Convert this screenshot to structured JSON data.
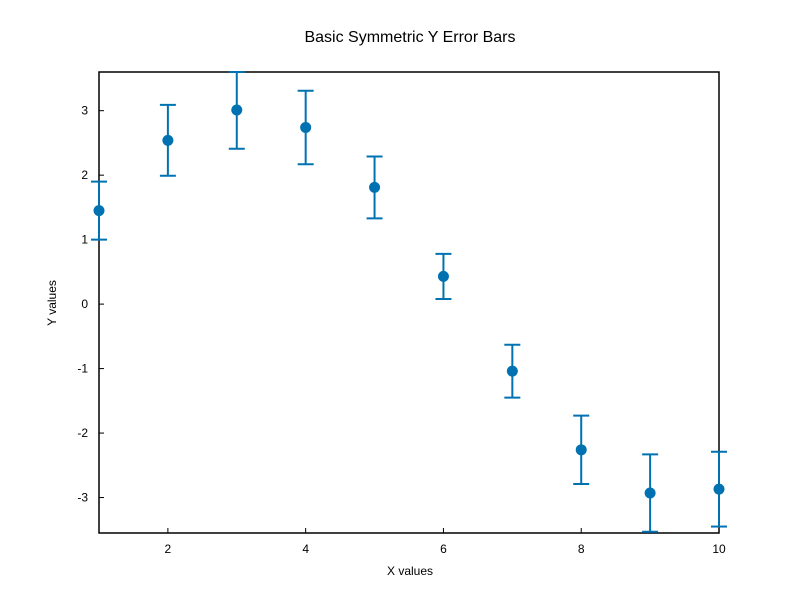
{
  "chart_data": {
    "type": "scatter",
    "title": "Basic Symmetric Y Error Bars",
    "xlabel": "X values",
    "ylabel": "Y values",
    "xlim": [
      1,
      10
    ],
    "ylim": [
      -3.55,
      3.6
    ],
    "x_ticks": [
      2,
      4,
      6,
      8,
      10
    ],
    "x_tick_labels": [
      "2",
      "4",
      "6",
      "8",
      "10"
    ],
    "y_ticks": [
      3,
      2,
      1,
      0,
      -1,
      -2,
      -3
    ],
    "y_tick_labels": [
      "3",
      "2",
      "1",
      "0",
      "-1",
      "-2",
      "-3"
    ],
    "grid": false,
    "colors": {
      "series": "#0072b2",
      "frame": "#000000",
      "background": "#ffffff"
    },
    "series": [
      {
        "x": [
          1,
          2,
          3,
          4,
          5,
          6,
          7,
          8,
          9,
          10
        ],
        "y": [
          1.45,
          2.54,
          3.01,
          2.74,
          1.81,
          0.43,
          -1.04,
          -2.26,
          -2.93,
          -2.87
        ],
        "y_error": [
          0.45,
          0.55,
          0.6,
          0.57,
          0.48,
          0.35,
          0.41,
          0.53,
          0.6,
          0.58
        ]
      }
    ]
  }
}
